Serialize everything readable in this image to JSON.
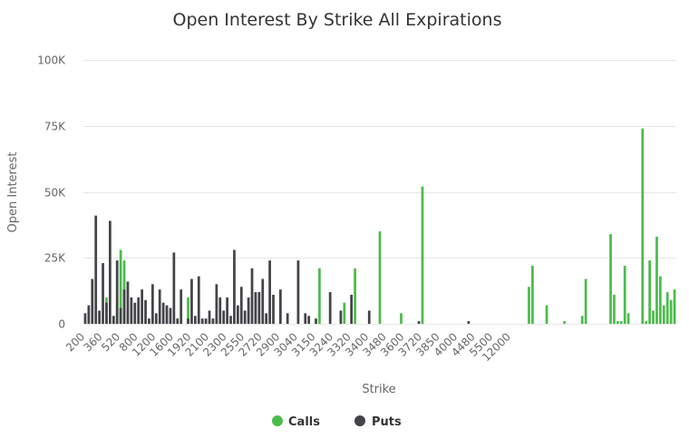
{
  "chart_data": {
    "type": "bar",
    "title": "Open Interest By Strike All Expirations",
    "xlabel": "Strike",
    "ylabel": "Open Interest",
    "ylim": [
      0,
      100000
    ],
    "yticks": [
      0,
      25000,
      50000,
      75000,
      100000
    ],
    "ytick_labels": [
      "0",
      "25K",
      "50K",
      "75K",
      "100K"
    ],
    "grid": true,
    "legend_position": "bottom-center",
    "x_tick_labels": [
      "200",
      "360",
      "520",
      "800",
      "1200",
      "1600",
      "1920",
      "2100",
      "2300",
      "2550",
      "2720",
      "2900",
      "3040",
      "3150",
      "3240",
      "3320",
      "3400",
      "3480",
      "3600",
      "3720",
      "3850",
      "4000",
      "4480",
      "5500",
      "12000"
    ],
    "x_tick_every": 5,
    "series": [
      {
        "name": "Calls",
        "color": "#4cbb4c",
        "values": [
          0,
          0,
          0,
          0,
          0,
          0,
          10000,
          0,
          0,
          8000,
          28000,
          24000,
          0,
          0,
          0,
          0,
          0,
          0,
          0,
          0,
          0,
          0,
          0,
          0,
          0,
          0,
          0,
          0,
          0,
          10000,
          0,
          0,
          0,
          0,
          0,
          0,
          0,
          0,
          0,
          0,
          0,
          0,
          0,
          0,
          0,
          0,
          0,
          0,
          0,
          0,
          0,
          0,
          0,
          0,
          0,
          0,
          0,
          0,
          0,
          0,
          0,
          0,
          0,
          0,
          0,
          0,
          21000,
          0,
          0,
          0,
          0,
          0,
          0,
          8000,
          0,
          0,
          21000,
          0,
          0,
          0,
          0,
          0,
          0,
          35000,
          0,
          0,
          0,
          0,
          0,
          4000,
          0,
          0,
          0,
          0,
          0,
          52000,
          0,
          0,
          0,
          0,
          0,
          0,
          0,
          0,
          0,
          0,
          0,
          0,
          0,
          0,
          0,
          0,
          0,
          0,
          0,
          0,
          0,
          0,
          0,
          0,
          0,
          0,
          0,
          0,
          0,
          14000,
          22000,
          0,
          0,
          0,
          7000,
          0,
          0,
          0,
          0,
          1000,
          0,
          0,
          0,
          0,
          3000,
          17000,
          0,
          0,
          0,
          0,
          0,
          0,
          34000,
          11000,
          1000,
          1000,
          22000,
          4000,
          0,
          0,
          0,
          74000,
          1000,
          24000,
          5000,
          33000,
          18000,
          7000,
          12000,
          9000,
          13000
        ]
      },
      {
        "name": "Puts",
        "color": "#434348",
        "values": [
          4000,
          7000,
          17000,
          41000,
          5000,
          23000,
          8000,
          39000,
          3000,
          24000,
          6000,
          13000,
          16000,
          10000,
          8000,
          10000,
          13000,
          9000,
          2000,
          15000,
          4000,
          13000,
          8000,
          7000,
          6000,
          27000,
          2000,
          13000,
          0,
          2000,
          17000,
          3000,
          18000,
          2000,
          2000,
          5000,
          2000,
          15000,
          10000,
          5000,
          10000,
          3000,
          28000,
          7000,
          14000,
          5000,
          10000,
          21000,
          12000,
          12000,
          17000,
          4000,
          24000,
          11000,
          0,
          13000,
          0,
          4000,
          0,
          0,
          24000,
          0,
          4000,
          3000,
          0,
          2000,
          0,
          0,
          0,
          12000,
          0,
          0,
          5000,
          0,
          0,
          11000,
          0,
          0,
          0,
          0,
          5000,
          0,
          0,
          0,
          0,
          0,
          0,
          0,
          0,
          0,
          0,
          0,
          0,
          0,
          1000,
          0,
          0,
          0,
          0,
          0,
          0,
          0,
          0,
          0,
          0,
          0,
          0,
          0,
          1000,
          0,
          0,
          0,
          0,
          0,
          0,
          0,
          0,
          0,
          0,
          0,
          0,
          0,
          0,
          0,
          0,
          0,
          0,
          0,
          0,
          0,
          0,
          0,
          0,
          0,
          0,
          0,
          0,
          0,
          0,
          0,
          0,
          0,
          0,
          0,
          0,
          0,
          0,
          0,
          0,
          0,
          0,
          0,
          0,
          0,
          0,
          0,
          0,
          0,
          0,
          0,
          0,
          0,
          0,
          0,
          0,
          0,
          0,
          0,
          0,
          0,
          0,
          0,
          0,
          0,
          0,
          0,
          0,
          0
        ]
      }
    ]
  }
}
